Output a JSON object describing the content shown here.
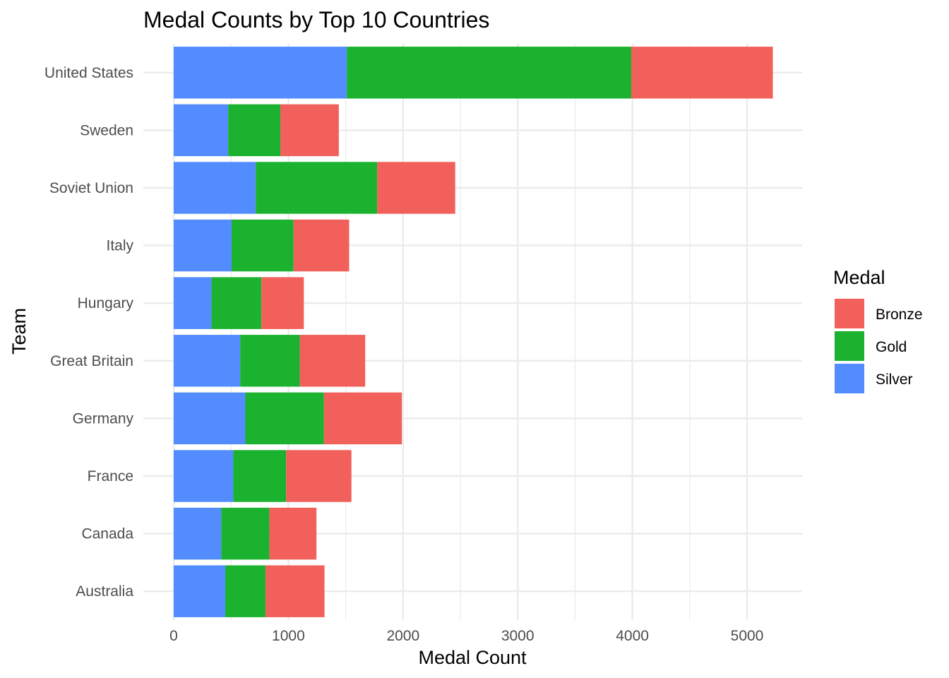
{
  "chart_data": {
    "type": "bar",
    "orientation": "horizontal",
    "stacked": true,
    "title": "Medal Counts by Top 10 Countries",
    "xlabel": "Medal Count",
    "ylabel": "Team",
    "xlim": [
      0,
      5500
    ],
    "x_ticks": [
      0,
      1000,
      2000,
      3000,
      4000,
      5000
    ],
    "x_tick_labels": [
      "0",
      "1000",
      "2000",
      "3000",
      "4000",
      "5000"
    ],
    "categories": [
      "United States",
      "Sweden",
      "Soviet Union",
      "Italy",
      "Hungary",
      "Great Britain",
      "Germany",
      "France",
      "Canada",
      "Australia"
    ],
    "series": [
      {
        "name": "Silver",
        "color": "#528CFF",
        "values": [
          1510,
          475,
          715,
          505,
          330,
          580,
          625,
          520,
          415,
          450
        ]
      },
      {
        "name": "Gold",
        "color": "#1AB22E",
        "values": [
          2480,
          455,
          1060,
          540,
          435,
          520,
          685,
          460,
          420,
          350
        ]
      },
      {
        "name": "Bronze",
        "color": "#F2605B",
        "values": [
          1235,
          510,
          680,
          485,
          370,
          570,
          680,
          570,
          410,
          515
        ]
      }
    ],
    "legend": {
      "title": "Medal",
      "position": "right",
      "entries": [
        {
          "name": "Bronze",
          "color": "#F2605B"
        },
        {
          "name": "Gold",
          "color": "#1AB22E"
        },
        {
          "name": "Silver",
          "color": "#528CFF"
        }
      ]
    },
    "grid": true
  }
}
